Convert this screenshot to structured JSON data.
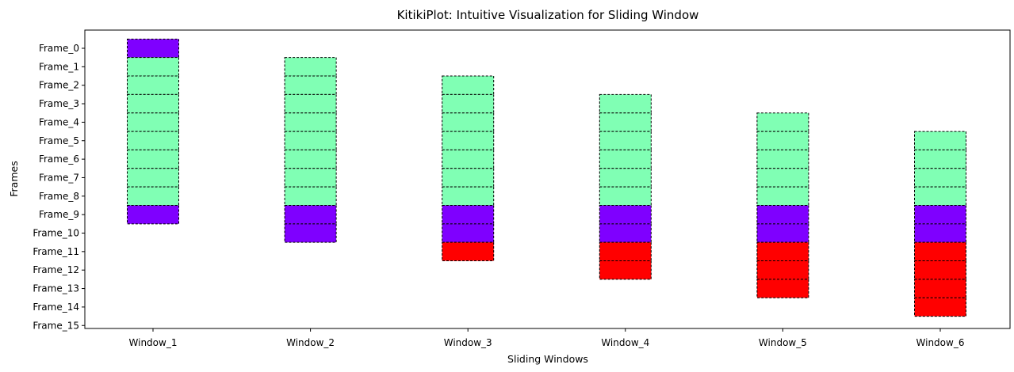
{
  "chart_data": {
    "type": "bar",
    "title": "KitikiPlot: Intuitive Visualization for Sliding Window",
    "xlabel": "Sliding Windows",
    "ylabel": "Frames",
    "categories": [
      "Window_1",
      "Window_2",
      "Window_3",
      "Window_4",
      "Window_5",
      "Window_6"
    ],
    "frame_labels": [
      "Frame_0",
      "Frame_1",
      "Frame_2",
      "Frame_3",
      "Frame_4",
      "Frame_5",
      "Frame_6",
      "Frame_7",
      "Frame_8",
      "Frame_9",
      "Frame_10",
      "Frame_11",
      "Frame_12",
      "Frame_13",
      "Frame_14",
      "Frame_15"
    ],
    "colors": {
      "purple": "#7f00ff",
      "green": "#80ffb4",
      "red": "#ff0000",
      "edge": "#000000"
    },
    "windows": [
      {
        "name": "Window_1",
        "start_frame": 0,
        "cells": [
          "purple",
          "green",
          "green",
          "green",
          "green",
          "green",
          "green",
          "green",
          "green",
          "purple"
        ]
      },
      {
        "name": "Window_2",
        "start_frame": 1,
        "cells": [
          "green",
          "green",
          "green",
          "green",
          "green",
          "green",
          "green",
          "green",
          "purple",
          "purple"
        ]
      },
      {
        "name": "Window_3",
        "start_frame": 2,
        "cells": [
          "green",
          "green",
          "green",
          "green",
          "green",
          "green",
          "green",
          "purple",
          "purple",
          "red"
        ]
      },
      {
        "name": "Window_4",
        "start_frame": 3,
        "cells": [
          "green",
          "green",
          "green",
          "green",
          "green",
          "green",
          "purple",
          "purple",
          "red",
          "red"
        ]
      },
      {
        "name": "Window_5",
        "start_frame": 4,
        "cells": [
          "green",
          "green",
          "green",
          "green",
          "green",
          "purple",
          "purple",
          "red",
          "red",
          "red"
        ]
      },
      {
        "name": "Window_6",
        "start_frame": 5,
        "cells": [
          "green",
          "green",
          "green",
          "green",
          "purple",
          "purple",
          "red",
          "red",
          "red",
          "red"
        ]
      }
    ],
    "grid": false,
    "legend": "none"
  }
}
